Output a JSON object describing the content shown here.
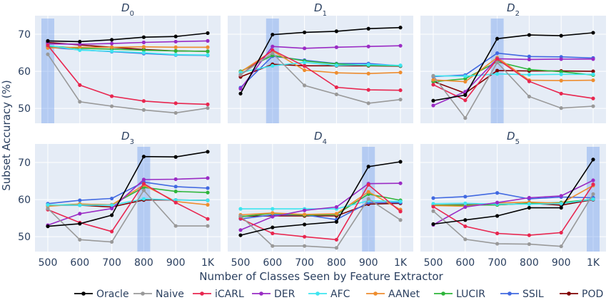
{
  "chart_data": {
    "type": "line",
    "xlabel": "Number of Classes Seen by Feature Extractor",
    "ylabel": "Subset Accuracy (%)",
    "x_categories": [
      "500",
      "600",
      "700",
      "800",
      "900",
      "1K"
    ],
    "colors": {
      "Oracle": "#000000",
      "Naive": "#999999",
      "iCARL": "#e8264f",
      "DER": "#9a2bc4",
      "AFC": "#3ee5ef",
      "AANet": "#ee8d2f",
      "LUCIR": "#2db53a",
      "SSIL": "#4169e1",
      "POD": "#800000"
    },
    "legend": [
      "Oracle",
      "Naive",
      "iCARL",
      "DER",
      "AFC",
      "AANet",
      "LUCIR",
      "SSIL",
      "POD"
    ],
    "panels": [
      {
        "title": "D",
        "subscript": "0",
        "ylim": [
          46,
          75
        ],
        "yticks": [
          50,
          60,
          70
        ],
        "highlight_index": 0,
        "series": {
          "Oracle": [
            68.2,
            68.0,
            68.5,
            69.2,
            69.4,
            70.3
          ],
          "Naive": [
            64.6,
            51.8,
            50.6,
            49.6,
            48.8,
            50.1
          ],
          "iCARL": [
            67.0,
            56.3,
            53.3,
            52.0,
            51.4,
            51.1
          ],
          "DER": [
            67.4,
            67.3,
            67.5,
            67.8,
            68.0,
            68.2
          ],
          "AFC": [
            67.0,
            65.7,
            65.4,
            65.0,
            64.5,
            64.4
          ],
          "AANet": [
            66.3,
            66.5,
            66.5,
            66.6,
            66.5,
            66.5
          ],
          "LUCIR": [
            66.8,
            66.2,
            66.0,
            65.7,
            65.5,
            65.4
          ],
          "SSIL": [
            66.5,
            65.8,
            65.3,
            64.8,
            64.4,
            64.3
          ],
          "POD": [
            67.8,
            67.1,
            66.5,
            65.9,
            65.5,
            65.4
          ]
        }
      },
      {
        "title": "D",
        "subscript": "1",
        "ylim": [
          46,
          75
        ],
        "yticks": [
          50,
          60,
          70
        ],
        "highlight_index": 1,
        "series": {
          "Oracle": [
            54.0,
            69.9,
            70.5,
            70.8,
            71.5,
            71.8
          ],
          "Naive": [
            59.1,
            64.9,
            56.2,
            53.8,
            51.4,
            52.4
          ],
          "iCARL": [
            59.0,
            65.7,
            61.4,
            55.7,
            55.0,
            54.9
          ],
          "DER": [
            55.3,
            66.7,
            66.2,
            66.5,
            66.7,
            66.9
          ],
          "AFC": [
            59.7,
            61.5,
            62.4,
            61.6,
            61.8,
            61.6
          ],
          "AANet": [
            59.8,
            65.5,
            60.3,
            59.6,
            59.4,
            59.7
          ],
          "LUCIR": [
            60.0,
            64.3,
            62.8,
            62.0,
            61.6,
            61.5
          ],
          "SSIL": [
            55.6,
            64.1,
            63.0,
            62.1,
            62.1,
            61.5
          ],
          "POD": [
            58.5,
            61.9,
            61.5,
            61.5,
            61.5,
            61.4
          ]
        }
      },
      {
        "title": "D",
        "subscript": "2",
        "ylim": [
          46,
          75
        ],
        "yticks": [
          50,
          60,
          70
        ],
        "highlight_index": 2,
        "series": {
          "Oracle": [
            52.1,
            53.6,
            68.8,
            69.8,
            69.6,
            70.4
          ],
          "Naive": [
            58.8,
            47.4,
            62.4,
            53.2,
            50.1,
            50.6
          ],
          "iCARL": [
            56.4,
            52.2,
            63.3,
            57.3,
            54.0,
            52.7
          ],
          "DER": [
            50.8,
            54.5,
            63.4,
            63.2,
            63.3,
            63.3
          ],
          "AFC": [
            58.8,
            58.7,
            59.3,
            59.1,
            59.2,
            59.2
          ],
          "AANet": [
            57.7,
            57.2,
            63.7,
            57.6,
            57.5,
            57.6
          ],
          "LUCIR": [
            57.2,
            58.0,
            62.6,
            60.5,
            59.9,
            59.0
          ],
          "SSIL": [
            58.6,
            59.0,
            64.9,
            64.0,
            63.9,
            63.6
          ],
          "POD": [
            57.3,
            54.1,
            60.2,
            60.1,
            60.1,
            60.0
          ]
        }
      },
      {
        "title": "D",
        "subscript": "3",
        "ylim": [
          46,
          75
        ],
        "yticks": [
          50,
          60,
          70
        ],
        "highlight_index": 3,
        "series": {
          "Oracle": [
            52.8,
            53.5,
            55.8,
            71.6,
            71.5,
            72.9
          ],
          "Naive": [
            57.6,
            49.2,
            48.6,
            62.5,
            52.9,
            52.9
          ],
          "iCARL": [
            57.3,
            53.8,
            51.4,
            64.3,
            59.2,
            54.8
          ],
          "DER": [
            53.1,
            56.2,
            57.6,
            65.4,
            65.5,
            65.8
          ],
          "AFC": [
            58.6,
            58.5,
            58.5,
            60.2,
            59.9,
            59.8
          ],
          "AANet": [
            58.2,
            58.8,
            58.6,
            63.9,
            59.5,
            58.6
          ],
          "LUCIR": [
            58.4,
            58.8,
            58.6,
            63.3,
            62.2,
            61.9
          ],
          "SSIL": [
            58.9,
            59.8,
            60.3,
            64.7,
            63.5,
            63.1
          ],
          "POD": [
            58.5,
            58.5,
            58.0,
            59.9,
            59.9,
            59.8
          ]
        }
      },
      {
        "title": "D",
        "subscript": "4",
        "ylim": [
          46,
          75
        ],
        "yticks": [
          50,
          60,
          70
        ],
        "highlight_index": 4,
        "series": {
          "Oracle": [
            50.4,
            52.5,
            53.3,
            54.0,
            68.9,
            70.2
          ],
          "Naive": [
            55.6,
            47.5,
            47.5,
            47.0,
            60.2,
            54.5
          ],
          "iCARL": [
            54.9,
            50.9,
            50.0,
            49.2,
            64.0,
            56.8
          ],
          "DER": [
            51.8,
            55.4,
            57.1,
            58.0,
            64.3,
            64.4
          ],
          "AFC": [
            57.5,
            57.5,
            57.5,
            57.5,
            59.7,
            59.5
          ],
          "AANet": [
            55.9,
            56.4,
            56.0,
            56.2,
            62.1,
            57.3
          ],
          "LUCIR": [
            55.4,
            56.3,
            55.8,
            56.0,
            61.5,
            59.8
          ],
          "SSIL": [
            54.8,
            55.9,
            55.9,
            54.6,
            59.2,
            59.2
          ],
          "POD": [
            55.5,
            55.6,
            55.6,
            55.6,
            58.8,
            59.0
          ]
        }
      },
      {
        "title": "D",
        "subscript": "5",
        "ylim": [
          46,
          75
        ],
        "yticks": [
          50,
          60,
          70
        ],
        "highlight_index": 5,
        "series": {
          "Oracle": [
            53.4,
            54.5,
            55.6,
            57.8,
            57.8,
            70.8
          ],
          "Naive": [
            56.9,
            49.3,
            48.1,
            48.0,
            47.4,
            61.5
          ],
          "iCARL": [
            58.1,
            52.8,
            50.9,
            50.4,
            51.1,
            64.1
          ],
          "DER": [
            53.2,
            58.0,
            59.2,
            60.5,
            61.0,
            65.2
          ],
          "AFC": [
            58.9,
            59.0,
            58.8,
            58.8,
            58.9,
            60.1
          ],
          "AANet": [
            58.4,
            58.2,
            59.1,
            59.3,
            59.0,
            63.8
          ],
          "LUCIR": [
            58.5,
            58.5,
            58.6,
            59.0,
            59.2,
            60.1
          ],
          "SSIL": [
            60.4,
            60.8,
            61.8,
            60.2,
            60.7,
            60.5
          ],
          "POD": [
            58.5,
            58.6,
            58.6,
            59.0,
            58.5,
            60.0
          ]
        }
      }
    ]
  }
}
